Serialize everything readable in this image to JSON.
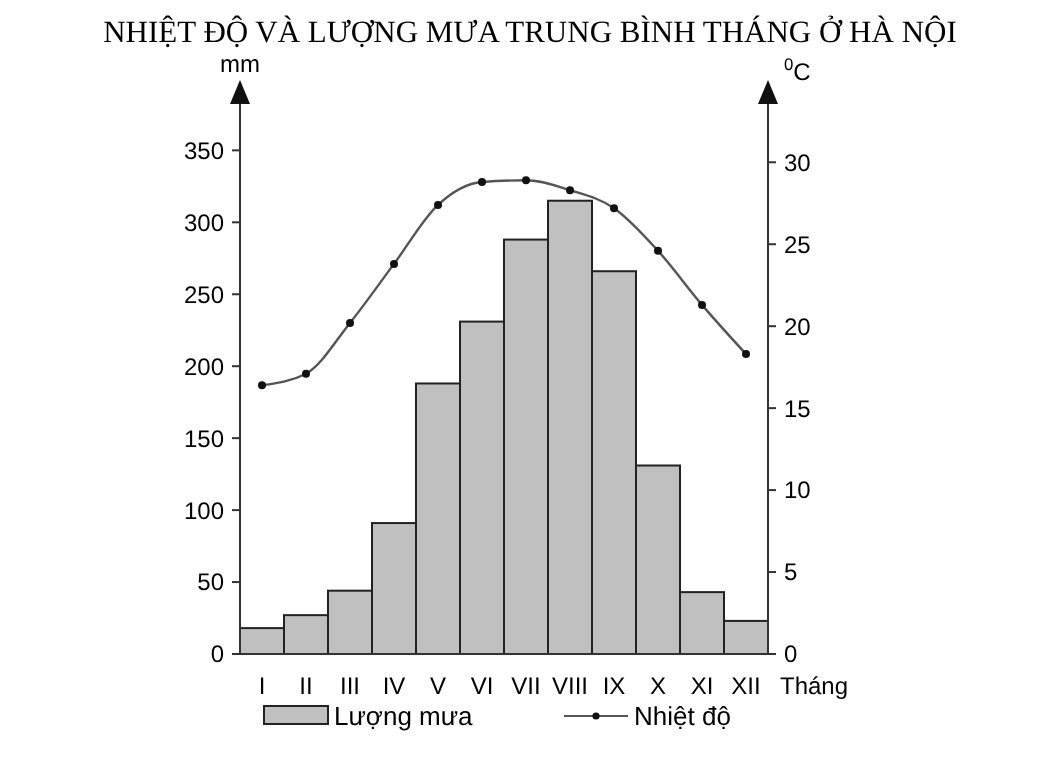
{
  "chart_data": {
    "type": "bar",
    "title": "NHIỆT ĐỘ VÀ LƯỢNG MƯA TRUNG BÌNH THÁNG Ở HÀ NỘI",
    "categories": [
      "I",
      "II",
      "III",
      "IV",
      "V",
      "VI",
      "VII",
      "VIII",
      "IX",
      "X",
      "XI",
      "XII"
    ],
    "xlabel": "Tháng",
    "ylabel": "mm",
    "y2label": "$^{0}$C",
    "series": [
      {
        "name": "Lượng mưa",
        "color": "#c0c0c0",
        "values": [
          18,
          27,
          44,
          91,
          188,
          231,
          288,
          315,
          266,
          131,
          43,
          23
        ]
      },
      {
        "name": "Nhiệt độ",
        "type": "line",
        "axis": "y2",
        "color": "#555555",
        "marker": "circle",
        "values": [
          16.4,
          17.1,
          20.2,
          23.8,
          27.4,
          28.8,
          28.9,
          28.3,
          27.2,
          24.6,
          21.3,
          18.3
        ]
      }
    ],
    "ylim": [
      0,
      385
    ],
    "yticks": [
      0,
      50,
      100,
      150,
      200,
      250,
      300,
      350
    ],
    "y2lim": [
      0,
      33.8
    ],
    "y2ticks": [
      0,
      5,
      10,
      15,
      20,
      25,
      30
    ],
    "grid": false,
    "legend": "bottom"
  }
}
